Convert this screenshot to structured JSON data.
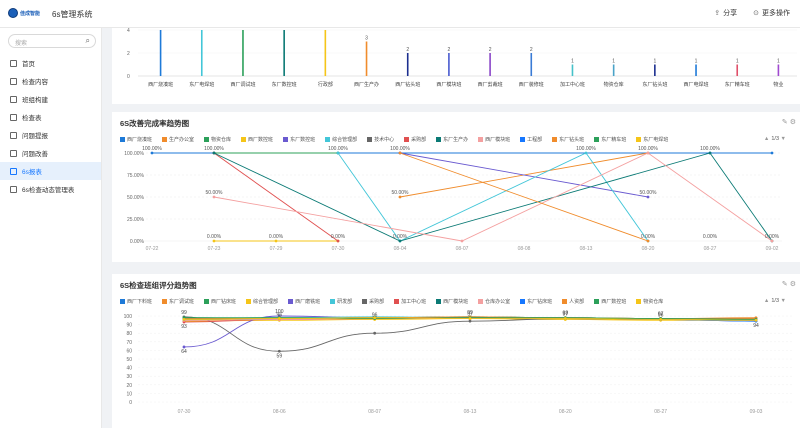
{
  "app": {
    "logo_text": "佳成智能",
    "title": "6s管理系统",
    "share_label": "分享",
    "more_label": "更多操作"
  },
  "sidebar": {
    "search_placeholder": "搜索",
    "items": [
      {
        "label": "首页",
        "icon": "home-icon"
      },
      {
        "label": "检查内容",
        "icon": "document-icon"
      },
      {
        "label": "班组构建",
        "icon": "document-icon"
      },
      {
        "label": "检查表",
        "icon": "document-icon"
      },
      {
        "label": "问题提报",
        "icon": "document-icon"
      },
      {
        "label": "问题改善",
        "icon": "document-icon"
      },
      {
        "label": "6s报表",
        "icon": "report-icon",
        "active": true
      },
      {
        "label": "6s检查动态管理表",
        "icon": "document-icon"
      }
    ]
  },
  "chart_data": [
    {
      "type": "bar",
      "title": "",
      "categories": [
        "西厂烧凑班",
        "东厂电焊班",
        "西厂调试班",
        "东厂数控班",
        "行政部",
        "西厂生产办",
        "西厂钻头班",
        "西厂模块班",
        "西厂剪裁班",
        "西厂装修班",
        "加工中心班",
        "物资仓库",
        "东厂钻头班",
        "西厂电焊班",
        "东厂精车班",
        "物业"
      ],
      "values": [
        4,
        4,
        4,
        4,
        4,
        3,
        2,
        2,
        2,
        2,
        1,
        1,
        1,
        1,
        1,
        1
      ],
      "bar_colors": [
        "#1e7ad8",
        "#43c6d8",
        "#2ca05a",
        "#0b7a75",
        "#f5c518",
        "#f08c2c",
        "#1c2f8f",
        "#4a5bd0",
        "#8a46c8",
        "#3a7bd5",
        "#46c2c9",
        "#4aa3c8",
        "#1c2f8f",
        "#1e7ad8",
        "#e0506a",
        "#a04ad0"
      ],
      "yticks": [
        0,
        2,
        4
      ]
    },
    {
      "type": "line",
      "title": "6S改善完成率趋势图",
      "x": [
        "07-22",
        "07-23",
        "07-29",
        "07-30",
        "08-04",
        "08-07",
        "08-08",
        "08-13",
        "08-20",
        "08-27",
        "09-02"
      ],
      "yticks": [
        "0.00%",
        "25.00%",
        "50.00%",
        "75.00%",
        "100.00%"
      ],
      "ylim": [
        0,
        100
      ],
      "pager": "1/3",
      "series": [
        {
          "name": "西厂烧凑班",
          "color": "#1e7ad8",
          "values": [
            100,
            100,
            null,
            100,
            100,
            null,
            null,
            null,
            null,
            100,
            100
          ]
        },
        {
          "name": "生产办公室",
          "color": "#f08c2c",
          "values": [
            null,
            null,
            null,
            null,
            50,
            null,
            null,
            null,
            100,
            null,
            null
          ]
        },
        {
          "name": "物资仓库",
          "color": "#2ca05a",
          "values": [
            null,
            100,
            null,
            100,
            null,
            null,
            null,
            null,
            null,
            null,
            null
          ]
        },
        {
          "name": "西厂数控班",
          "color": "#f5c518",
          "values": [
            null,
            0,
            0,
            0,
            null,
            null,
            null,
            null,
            null,
            null,
            null
          ]
        },
        {
          "name": "东厂数控班",
          "color": "#6a5ad0",
          "values": [
            null,
            null,
            null,
            null,
            100,
            null,
            null,
            null,
            50,
            null,
            null
          ]
        },
        {
          "name": "综合管理部",
          "color": "#43c6d8",
          "values": [
            null,
            null,
            null,
            100,
            0,
            null,
            null,
            100,
            0,
            null,
            null
          ]
        },
        {
          "name": "技术中心",
          "color": "#666666",
          "values": [
            null,
            null,
            null,
            null,
            null,
            null,
            null,
            null,
            null,
            null,
            null
          ]
        },
        {
          "name": "采购部",
          "color": "#e05050",
          "values": [
            null,
            100,
            null,
            0,
            null,
            null,
            null,
            null,
            null,
            null,
            null
          ]
        },
        {
          "name": "东厂生产办",
          "color": "#0b7a75",
          "values": [
            null,
            100,
            null,
            null,
            0,
            null,
            null,
            null,
            null,
            100,
            0
          ]
        },
        {
          "name": "西厂模块班",
          "color": "#f4a0a0",
          "values": [
            null,
            50,
            null,
            null,
            null,
            0,
            null,
            null,
            100,
            null,
            0
          ]
        },
        {
          "name": "工程部",
          "color": "#1677ff",
          "values": [
            null,
            null,
            null,
            null,
            null,
            null,
            null,
            null,
            null,
            null,
            null
          ]
        },
        {
          "name": "东厂钻头班",
          "color": "#f08c2c",
          "values": [
            null,
            null,
            null,
            null,
            100,
            null,
            null,
            null,
            0,
            null,
            null
          ]
        },
        {
          "name": "东厂精车班",
          "color": "#2ca05a",
          "values": [
            null,
            null,
            null,
            null,
            null,
            null,
            null,
            null,
            null,
            null,
            null
          ]
        },
        {
          "name": "东厂电焊班",
          "color": "#f5c518",
          "values": [
            null,
            null,
            null,
            null,
            null,
            null,
            null,
            null,
            null,
            null,
            null
          ]
        }
      ],
      "data_labels": [
        {
          "x": "07-22",
          "text": "100.00%"
        },
        {
          "x": "07-23",
          "text": "100.00%"
        },
        {
          "x": "07-30",
          "text": "100.00%"
        },
        {
          "x": "08-04",
          "text": "100.00%"
        },
        {
          "x": "08-13",
          "text": "100.00%"
        },
        {
          "x": "08-20",
          "text": "100.00%"
        },
        {
          "x": "08-27",
          "text": "100.00%"
        },
        {
          "x": "07-23",
          "text": "50.00%"
        },
        {
          "x": "08-04",
          "text": "50.00%"
        },
        {
          "x": "08-20",
          "text": "50.00%"
        },
        {
          "x": "07-23",
          "text": "0.00%"
        },
        {
          "x": "07-29",
          "text": "0.00%"
        },
        {
          "x": "07-30",
          "text": "0.00%"
        },
        {
          "x": "08-04",
          "text": "0.00%"
        },
        {
          "x": "08-20",
          "text": "0.00%"
        },
        {
          "x": "08-27",
          "text": "0.00%"
        },
        {
          "x": "09-02",
          "text": "0.00%"
        }
      ]
    },
    {
      "type": "line",
      "title": "6S检查班组评分趋势图",
      "x": [
        "07-30",
        "08-06",
        "08-07",
        "08-13",
        "08-20",
        "08-27",
        "09-03"
      ],
      "yticks": [
        0,
        10,
        20,
        30,
        40,
        50,
        60,
        70,
        80,
        90,
        100
      ],
      "ylim": [
        0,
        100
      ],
      "pager": "1/3",
      "series": [
        {
          "name": "西厂下料班",
          "color": "#1e7ad8",
          "values": [
            95,
            96,
            97,
            97,
            97,
            96,
            95
          ]
        },
        {
          "name": "东厂调试班",
          "color": "#f08c2c",
          "values": [
            96,
            97,
            98,
            98,
            98,
            97,
            98
          ]
        },
        {
          "name": "西厂钻床班",
          "color": "#2ca05a",
          "values": [
            97,
            98,
            98,
            99,
            98,
            97,
            96
          ]
        },
        {
          "name": "综合管理部",
          "color": "#f5c518",
          "values": [
            94,
            95,
            96,
            97,
            96,
            95,
            95
          ]
        },
        {
          "name": "西厂磨铣班",
          "color": "#6a5ad0",
          "values": [
            64,
            100,
            98,
            97,
            98,
            96,
            94
          ]
        },
        {
          "name": "研发部",
          "color": "#43c6d8",
          "values": [
            97,
            98,
            99,
            98,
            97,
            97,
            96
          ]
        },
        {
          "name": "采购部",
          "color": "#666666",
          "values": [
            99,
            59,
            80,
            94,
            97,
            96,
            95
          ]
        },
        {
          "name": "加工中心班",
          "color": "#e05050",
          "values": [
            93,
            96,
            97,
            98,
            97,
            96,
            97
          ]
        },
        {
          "name": "西厂模块班",
          "color": "#0b7a75",
          "values": [
            98,
            97,
            98,
            99,
            98,
            97,
            97
          ]
        },
        {
          "name": "仓库办公室",
          "color": "#f4a0a0",
          "values": [
            95,
            96,
            97,
            97,
            98,
            97,
            96
          ]
        },
        {
          "name": "东厂钻床班",
          "color": "#1677ff",
          "values": [
            96,
            97,
            98,
            98,
            97,
            96,
            94
          ]
        },
        {
          "name": "人资部",
          "color": "#f08c2c",
          "values": [
            97,
            97,
            98,
            99,
            98,
            97,
            97
          ]
        },
        {
          "name": "西厂数控班",
          "color": "#2ca05a",
          "values": [
            98,
            98,
            97,
            98,
            98,
            97,
            96
          ]
        },
        {
          "name": "物资仓库",
          "color": "#f5c518",
          "values": [
            96,
            97,
            98,
            97,
            97,
            96,
            95
          ]
        }
      ],
      "data_labels": [
        {
          "x": "07-30",
          "text": "99"
        },
        {
          "x": "07-30",
          "text": "93"
        },
        {
          "x": "07-30",
          "text": "64"
        },
        {
          "x": "08-06",
          "text": "100"
        },
        {
          "x": "08-06",
          "text": "96"
        },
        {
          "x": "08-06",
          "text": "59"
        },
        {
          "x": "08-07",
          "text": "96"
        },
        {
          "x": "08-13",
          "text": "99"
        },
        {
          "x": "08-13",
          "text": "97"
        },
        {
          "x": "08-20",
          "text": "98"
        },
        {
          "x": "08-20",
          "text": "97"
        },
        {
          "x": "08-27",
          "text": "97"
        },
        {
          "x": "08-27",
          "text": "96"
        },
        {
          "x": "09-03",
          "text": "94"
        }
      ]
    }
  ]
}
